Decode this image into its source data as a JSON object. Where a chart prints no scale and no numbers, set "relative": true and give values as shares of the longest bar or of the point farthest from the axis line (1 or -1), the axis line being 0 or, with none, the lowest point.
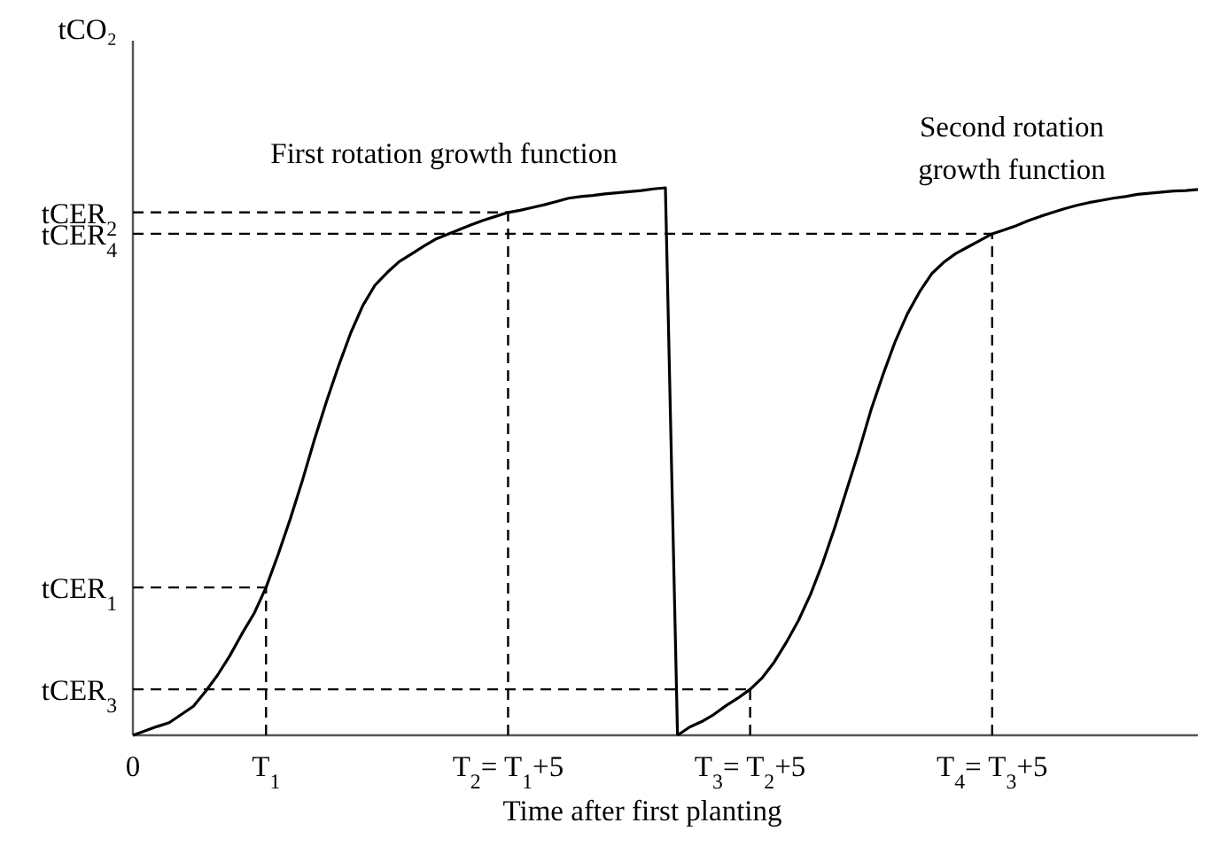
{
  "chart_data": {
    "type": "line",
    "relative": true,
    "xlabel": "Time after first planting",
    "ylabel": "tCO₂",
    "categories": [
      "0",
      null,
      null,
      null,
      null,
      null,
      null,
      null,
      null,
      null,
      null,
      "T$_{1}$",
      null,
      null,
      null,
      null,
      null,
      null,
      null,
      null,
      null,
      null,
      null,
      null,
      null,
      null,
      null,
      null,
      null,
      null,
      null,
      "T$_{2}$= T$_{1}$+5",
      null,
      null,
      null,
      null,
      null,
      null,
      null,
      null,
      null,
      null,
      null,
      null,
      null,
      null,
      null,
      null,
      null,
      null,
      null,
      "T$_{3}$= T$_{2}$+5",
      null,
      null,
      null,
      null,
      null,
      null,
      null,
      null,
      null,
      null,
      null,
      null,
      null,
      null,
      null,
      null,
      null,
      null,
      null,
      "T$_{4}$= T$_{3}$+5",
      null,
      null,
      null,
      null,
      null,
      null,
      null,
      null,
      null,
      null,
      null,
      null,
      null,
      null,
      null,
      null,
      null
    ],
    "series": [
      {
        "name": "First rotation growth function",
        "color": "#000000",
        "values": [
          0,
          0.008,
          0.016,
          0.023,
          0.038,
          0.053,
          0.08,
          0.11,
          0.145,
          0.185,
          0.222,
          0.27,
          0.33,
          0.395,
          0.465,
          0.54,
          0.61,
          0.675,
          0.735,
          0.785,
          0.822,
          0.845,
          0.865,
          0.879,
          0.893,
          0.906,
          0.915,
          0.924,
          0.933,
          0.941,
          0.948,
          0.955,
          0.959,
          0.964,
          0.969,
          0.975,
          0.981,
          0.984,
          0.986,
          0.989,
          0.991,
          0.993,
          0.995,
          0.998,
          1,
          0,
          null,
          null,
          null,
          null,
          null,
          null,
          null,
          null,
          null,
          null,
          null,
          null,
          null,
          null,
          null,
          null,
          null,
          null,
          null,
          null,
          null,
          null,
          null,
          null,
          null,
          null,
          null,
          null,
          null,
          null,
          null,
          null,
          null,
          null,
          null,
          null,
          null,
          null,
          null,
          null,
          null,
          null,
          null
        ]
      },
      {
        "name": "Second rotation growth function",
        "color": "#000000",
        "values": [
          null,
          null,
          null,
          null,
          null,
          null,
          null,
          null,
          null,
          null,
          null,
          null,
          null,
          null,
          null,
          null,
          null,
          null,
          null,
          null,
          null,
          null,
          null,
          null,
          null,
          null,
          null,
          null,
          null,
          null,
          null,
          null,
          null,
          null,
          null,
          null,
          null,
          null,
          null,
          null,
          null,
          null,
          null,
          null,
          null,
          0,
          0.015,
          0.025,
          0.038,
          0.054,
          0.068,
          0.084,
          0.105,
          0.134,
          0.17,
          0.21,
          0.258,
          0.315,
          0.38,
          0.45,
          0.52,
          0.595,
          0.66,
          0.72,
          0.77,
          0.81,
          0.843,
          0.864,
          0.88,
          0.892,
          0.904,
          0.916,
          0.923,
          0.931,
          0.94,
          0.948,
          0.955,
          0.962,
          0.968,
          0.973,
          0.977,
          0.981,
          0.984,
          0.988,
          0.99,
          0.992,
          0.994,
          0.995,
          0.997
        ]
      }
    ],
    "ref_lines": [
      {
        "axis": "y",
        "value": 0.27,
        "label": "tCER$_{1}$",
        "color": "#000000",
        "line_style": "dashed"
      },
      {
        "axis": "y",
        "value": 0.955,
        "label": "tCER$_{2}$",
        "color": "#000000",
        "line_style": "dashed"
      },
      {
        "axis": "y",
        "value": 0.084,
        "label": "tCER$_{3}$",
        "color": "#000000",
        "line_style": "dashed"
      },
      {
        "axis": "y",
        "value": 0.916,
        "label": "tCER$_{4}$",
        "color": "#000000",
        "line_style": "dashed"
      },
      {
        "axis": "x",
        "value": "T$_{1}$",
        "color": "#000000",
        "line_style": "dashed"
      },
      {
        "axis": "x",
        "value": "T$_{2}$= T$_{1}$+5",
        "color": "#000000",
        "line_style": "dashed"
      },
      {
        "axis": "x",
        "value": "T$_{3}$= T$_{2}$+5",
        "color": "#000000",
        "line_style": "dashed"
      },
      {
        "axis": "x",
        "value": "T$_{4}$= T$_{3}$+5",
        "color": "#000000",
        "line_style": "dashed"
      }
    ]
  }
}
